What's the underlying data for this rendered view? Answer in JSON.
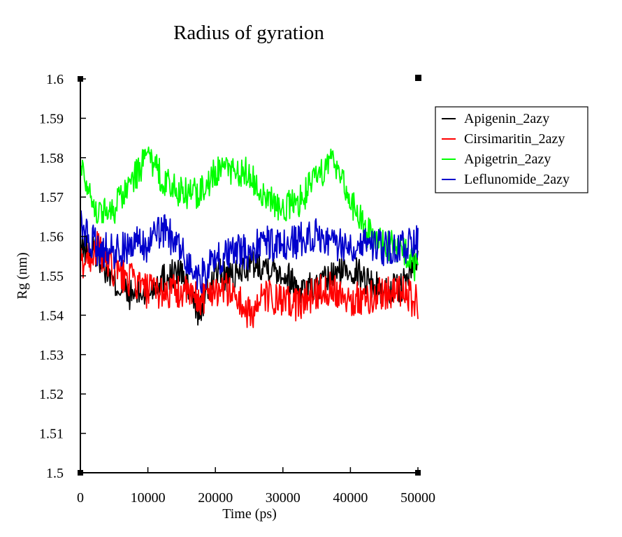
{
  "chart_data": {
    "type": "line",
    "title": "Radius of gyration",
    "xlabel": "Time (ps)",
    "ylabel": "Rg (nm)",
    "xlim": [
      0,
      50000
    ],
    "ylim": [
      1.5,
      1.6
    ],
    "xticks": [
      0,
      10000,
      20000,
      30000,
      40000,
      50000
    ],
    "xtick_labels": [
      "0",
      "10000",
      "20000",
      "30000",
      "40000",
      "50000"
    ],
    "yticks": [
      1.5,
      1.51,
      1.52,
      1.53,
      1.54,
      1.55,
      1.56,
      1.57,
      1.58,
      1.59,
      1.6
    ],
    "ytick_labels": [
      "1.5",
      "1.51",
      "1.52",
      "1.53",
      "1.54",
      "1.55",
      "1.56",
      "1.57",
      "1.58",
      "1.59",
      "1.6"
    ],
    "grid": false,
    "legend_position": "top-right outside plot",
    "x": [
      0,
      2500,
      5000,
      7500,
      10000,
      12500,
      15000,
      17500,
      20000,
      22500,
      25000,
      27500,
      30000,
      32500,
      35000,
      37500,
      40000,
      42500,
      45000,
      47500,
      50000
    ],
    "series": [
      {
        "name": "Apigenin_2azy",
        "color": "#000000",
        "values": [
          1.557,
          1.556,
          1.548,
          1.545,
          1.546,
          1.55,
          1.551,
          1.54,
          1.551,
          1.549,
          1.553,
          1.553,
          1.551,
          1.547,
          1.547,
          1.55,
          1.552,
          1.549,
          1.546,
          1.547,
          1.554
        ]
      },
      {
        "name": "Cirsimaritin_2azy",
        "color": "#ff0000",
        "values": [
          1.553,
          1.557,
          1.551,
          1.549,
          1.546,
          1.546,
          1.546,
          1.544,
          1.547,
          1.546,
          1.54,
          1.545,
          1.543,
          1.543,
          1.546,
          1.547,
          1.544,
          1.544,
          1.546,
          1.546,
          1.543
        ]
      },
      {
        "name": "Apigetrin_2azy",
        "color": "#00ff00",
        "values": [
          1.579,
          1.566,
          1.567,
          1.574,
          1.58,
          1.574,
          1.571,
          1.571,
          1.576,
          1.577,
          1.576,
          1.57,
          1.567,
          1.569,
          1.575,
          1.58,
          1.569,
          1.561,
          1.558,
          1.557,
          1.551
        ]
      },
      {
        "name": "Leflunomide_2azy",
        "color": "#0000cc",
        "values": [
          1.563,
          1.557,
          1.556,
          1.558,
          1.558,
          1.562,
          1.556,
          1.549,
          1.554,
          1.556,
          1.556,
          1.559,
          1.557,
          1.559,
          1.561,
          1.558,
          1.558,
          1.559,
          1.557,
          1.557,
          1.559
        ]
      }
    ]
  }
}
